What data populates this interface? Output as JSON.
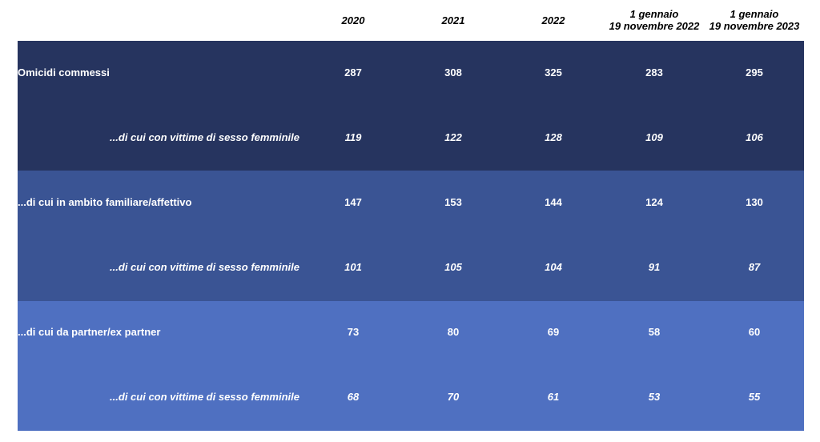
{
  "header": {
    "columns": [
      "2020",
      "2021",
      "2022",
      "1 gennaio\n19 novembre 2022",
      "1 gennaio\n19 novembre 2023"
    ]
  },
  "rows": [
    {
      "label": "Omicidi commessi",
      "values": [
        "287",
        "308",
        "325",
        "283",
        "295"
      ]
    },
    {
      "label": "...di cui con vittime di sesso femminile",
      "values": [
        "119",
        "122",
        "128",
        "109",
        "106"
      ]
    },
    {
      "label": "...di cui in ambito familiare/affettivo",
      "values": [
        "147",
        "153",
        "144",
        "124",
        "130"
      ]
    },
    {
      "label": "...di cui con vittime di sesso femminile",
      "values": [
        "101",
        "105",
        "104",
        "91",
        "87"
      ]
    },
    {
      "label": "...di cui da partner/ex partner",
      "values": [
        "73",
        "80",
        "69",
        "58",
        "60"
      ]
    },
    {
      "label": "...di cui con vittime di sesso femminile",
      "values": [
        "68",
        "70",
        "61",
        "53",
        "55"
      ]
    }
  ],
  "colors": {
    "band_1": "#26345f",
    "band_2": "#3a5494",
    "band_3": "#4f70c1",
    "text_on_band": "#ffffff",
    "header_text": "#000000"
  }
}
